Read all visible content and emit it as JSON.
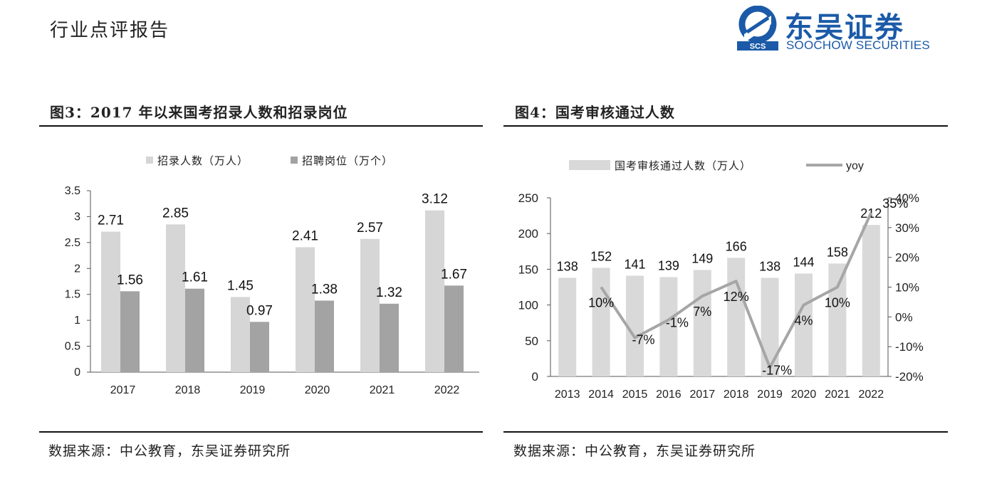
{
  "header": {
    "report_type": "行业点评报告",
    "logo_cn": "东吴证券",
    "logo_en": "SOOCHOW SECURITIES",
    "logo_abbr": "SCS",
    "logo_color": "#1b5aa8"
  },
  "left": {
    "title": "图3：2017 年以来国考招录人数和招录岗位",
    "source": "数据来源：中公教育，东吴证券研究所"
  },
  "right": {
    "title": "图4：国考审核通过人数",
    "source": "数据来源：中公教育，东吴证券研究所"
  },
  "chart_data": [
    {
      "type": "bar",
      "title": "",
      "categories": [
        "2017",
        "2018",
        "2019",
        "2020",
        "2021",
        "2022"
      ],
      "series": [
        {
          "name": "招录人数（万人）",
          "values": [
            2.71,
            2.85,
            1.45,
            2.41,
            2.57,
            3.12
          ],
          "color": "#d6d6d6",
          "labels": [
            "2.71",
            "2.85",
            "1.45",
            "2.41",
            "2.57",
            "3.12"
          ]
        },
        {
          "name": "招聘岗位（万个）",
          "values": [
            1.56,
            1.61,
            0.97,
            1.38,
            1.32,
            1.67
          ],
          "color": "#a3a3a3",
          "labels": [
            "1.56",
            "1.61",
            "0.97",
            "1.38",
            "1.32",
            "1.67"
          ]
        }
      ],
      "ylim": [
        0,
        3.5
      ],
      "yticks": [
        "0",
        "0.5",
        "1",
        "1.5",
        "2",
        "2.5",
        "3",
        "3.5"
      ],
      "legend": "top",
      "grid": false
    },
    {
      "type": "bar+line",
      "title": "",
      "categories": [
        "2013",
        "2014",
        "2015",
        "2016",
        "2017",
        "2018",
        "2019",
        "2020",
        "2021",
        "2022"
      ],
      "bars": {
        "name": "国考审核通过人数（万人）",
        "values": [
          138,
          152,
          141,
          139,
          149,
          166,
          138,
          144,
          158,
          212
        ],
        "color": "#d9d9d9",
        "labels": [
          "138",
          "152",
          "141",
          "139",
          "149",
          "166",
          "138",
          "144",
          "158",
          "212"
        ]
      },
      "line": {
        "name": "yoy",
        "values": [
          null,
          10,
          -7,
          -1,
          7,
          12,
          -17,
          4,
          10,
          35
        ],
        "color": "#a6a6a6",
        "labels": [
          "",
          "10%",
          "-7%",
          "-1%",
          "7%",
          "12%",
          "-17%",
          "4%",
          "10%",
          "35%"
        ]
      },
      "ylim_left": [
        0,
        250
      ],
      "yticks_left": [
        "0",
        "50",
        "100",
        "150",
        "200",
        "250"
      ],
      "ylim_right": [
        -20,
        40
      ],
      "yticks_right": [
        "-20%",
        "-10%",
        "0%",
        "10%",
        "20%",
        "30%",
        "40%"
      ],
      "legend": "top",
      "grid": false
    }
  ]
}
